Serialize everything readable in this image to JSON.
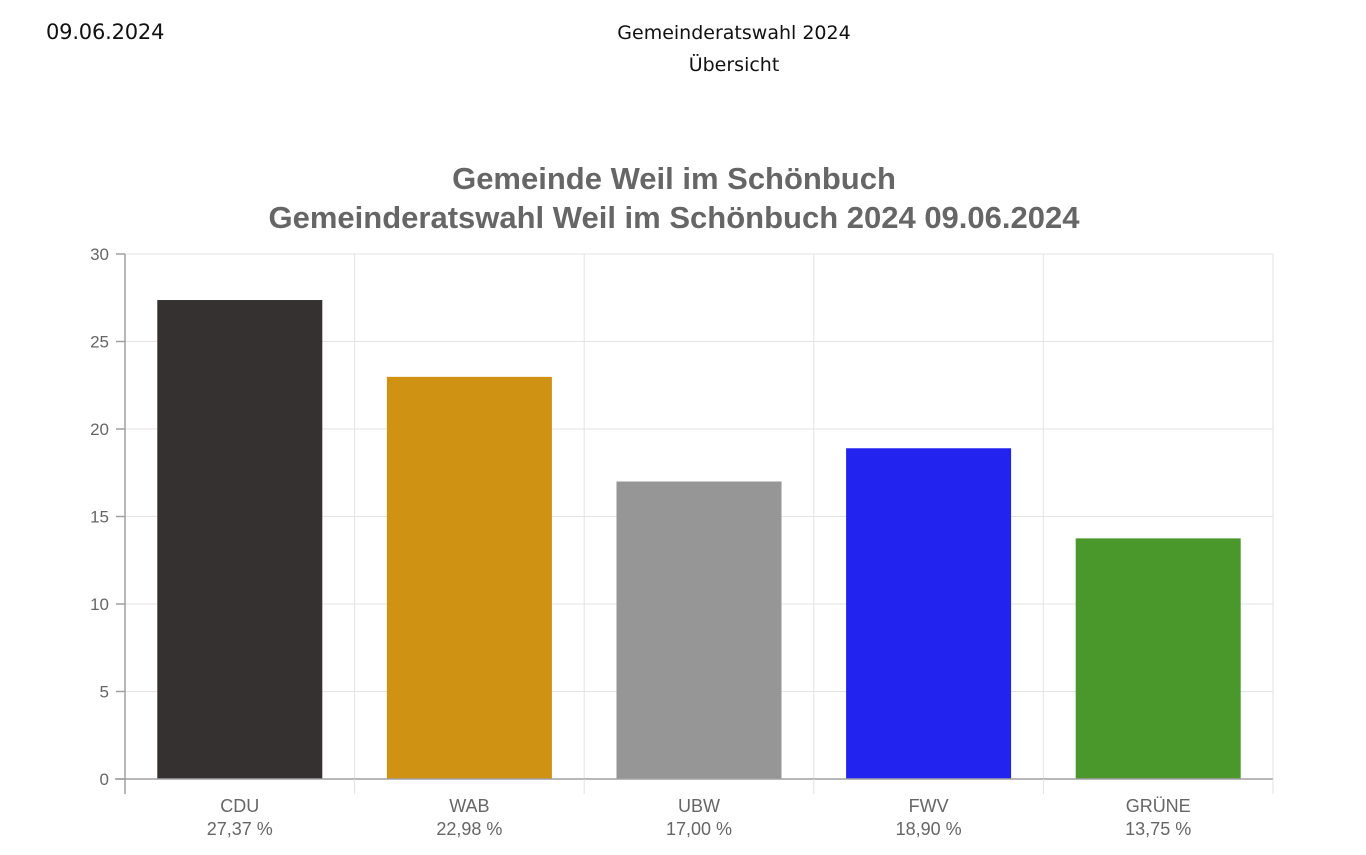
{
  "page": {
    "date": "09.06.2024",
    "title": "Gemeinderatswahl 2024",
    "subtitle": "Übersicht"
  },
  "chart_data": {
    "type": "bar",
    "title": [
      "Gemeinde Weil im Schönbuch",
      "Gemeinderatswahl Weil im Schönbuch 2024 09.06.2024"
    ],
    "categories": [
      "CDU",
      "WAB",
      "UBW",
      "FWV",
      "GRÜNE"
    ],
    "value_labels": [
      "27,37 %",
      "22,98 %",
      "17,00 %",
      "18,90 %",
      "13,75 %"
    ],
    "values": [
      27.37,
      22.98,
      17.0,
      18.9,
      13.75
    ],
    "colors": [
      "#353130",
      "#d09213",
      "#969696",
      "#2323f0",
      "#4a982c"
    ],
    "ylim": [
      0,
      30
    ],
    "yticks": [
      "0",
      "5",
      "10",
      "15",
      "20",
      "25",
      "30"
    ],
    "xlabel": "",
    "ylabel": "",
    "grid": true
  }
}
